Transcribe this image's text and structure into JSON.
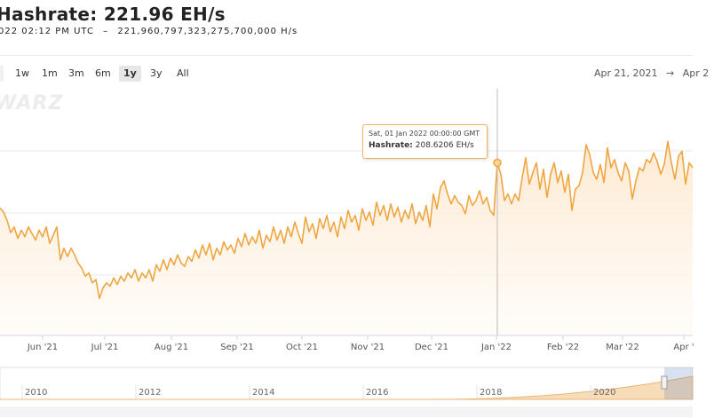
{
  "header": {
    "title": "Hashrate: 221.96 EH/s",
    "timestamp": "022 02:12 PM UTC",
    "separator": "–",
    "exact_value": "221,960,797,323,275,700,000 H/s"
  },
  "range_selector": {
    "buttons": [
      "1w",
      "1m",
      "3m",
      "6m",
      "1y",
      "3y",
      "All"
    ],
    "active": "1y"
  },
  "date_range": {
    "from": "Apr 21, 2021",
    "separator": "→",
    "to": "Apr 2"
  },
  "watermark": "WARZ",
  "tooltip": {
    "date": "Sat, 01 Jan 2022 00:00:00 GMT",
    "label": "Hashrate:",
    "value": "208.6206 EH/s"
  },
  "colors": {
    "line": "#f0a640",
    "area_top": "#fde7cc",
    "area_bottom": "#fffaf4",
    "grid": "#e8e8e8",
    "navigator_fill": "#f7dcb8"
  },
  "chart_data": {
    "type": "line",
    "title": "Hashrate",
    "unit": "EH/s",
    "x_ticks": [
      "Jun '21",
      "Jul '21",
      "Aug '21",
      "Sep '21",
      "Oct '21",
      "Nov '21",
      "Dec '21",
      "Jan '22",
      "Feb '22",
      "Mar '22",
      "Apr '"
    ],
    "grid": true,
    "series": [
      {
        "name": "Hashrate",
        "points": [
          [
            0,
            155
          ],
          [
            4,
            150
          ],
          [
            8,
            140
          ],
          [
            12,
            125
          ],
          [
            16,
            132
          ],
          [
            20,
            118
          ],
          [
            24,
            128
          ],
          [
            28,
            120
          ],
          [
            32,
            132
          ],
          [
            36,
            124
          ],
          [
            40,
            116
          ],
          [
            44,
            128
          ],
          [
            48,
            120
          ],
          [
            52,
            132
          ],
          [
            56,
            112
          ],
          [
            60,
            122
          ],
          [
            64,
            132
          ],
          [
            68,
            92
          ],
          [
            72,
            106
          ],
          [
            76,
            96
          ],
          [
            80,
            106
          ],
          [
            84,
            98
          ],
          [
            88,
            88
          ],
          [
            92,
            82
          ],
          [
            96,
            72
          ],
          [
            100,
            76
          ],
          [
            104,
            64
          ],
          [
            108,
            68
          ],
          [
            112,
            45
          ],
          [
            116,
            58
          ],
          [
            120,
            64
          ],
          [
            124,
            60
          ],
          [
            128,
            70
          ],
          [
            132,
            62
          ],
          [
            136,
            72
          ],
          [
            140,
            66
          ],
          [
            144,
            76
          ],
          [
            148,
            70
          ],
          [
            152,
            80
          ],
          [
            156,
            66
          ],
          [
            160,
            76
          ],
          [
            164,
            70
          ],
          [
            168,
            80
          ],
          [
            172,
            66
          ],
          [
            176,
            86
          ],
          [
            180,
            78
          ],
          [
            184,
            92
          ],
          [
            188,
            80
          ],
          [
            192,
            94
          ],
          [
            196,
            86
          ],
          [
            200,
            98
          ],
          [
            204,
            88
          ],
          [
            208,
            84
          ],
          [
            212,
            96
          ],
          [
            216,
            90
          ],
          [
            220,
            104
          ],
          [
            224,
            94
          ],
          [
            228,
            110
          ],
          [
            232,
            98
          ],
          [
            236,
            112
          ],
          [
            240,
            92
          ],
          [
            244,
            106
          ],
          [
            248,
            98
          ],
          [
            252,
            114
          ],
          [
            256,
            104
          ],
          [
            260,
            110
          ],
          [
            264,
            100
          ],
          [
            268,
            118
          ],
          [
            272,
            108
          ],
          [
            276,
            124
          ],
          [
            280,
            110
          ],
          [
            284,
            120
          ],
          [
            288,
            112
          ],
          [
            292,
            128
          ],
          [
            296,
            106
          ],
          [
            300,
            122
          ],
          [
            304,
            114
          ],
          [
            308,
            132
          ],
          [
            312,
            116
          ],
          [
            316,
            128
          ],
          [
            320,
            112
          ],
          [
            324,
            132
          ],
          [
            328,
            120
          ],
          [
            332,
            138
          ],
          [
            336,
            124
          ],
          [
            340,
            112
          ],
          [
            344,
            144
          ],
          [
            348,
            126
          ],
          [
            352,
            136
          ],
          [
            356,
            118
          ],
          [
            360,
            142
          ],
          [
            364,
            130
          ],
          [
            368,
            146
          ],
          [
            372,
            126
          ],
          [
            376,
            138
          ],
          [
            380,
            120
          ],
          [
            384,
            144
          ],
          [
            388,
            130
          ],
          [
            392,
            152
          ],
          [
            396,
            138
          ],
          [
            400,
            146
          ],
          [
            404,
            128
          ],
          [
            408,
            154
          ],
          [
            412,
            140
          ],
          [
            416,
            150
          ],
          [
            420,
            134
          ],
          [
            424,
            162
          ],
          [
            428,
            146
          ],
          [
            432,
            158
          ],
          [
            436,
            140
          ],
          [
            440,
            160
          ],
          [
            444,
            144
          ],
          [
            448,
            156
          ],
          [
            452,
            138
          ],
          [
            456,
            152
          ],
          [
            460,
            142
          ],
          [
            464,
            160
          ],
          [
            468,
            136
          ],
          [
            472,
            150
          ],
          [
            476,
            140
          ],
          [
            480,
            158
          ],
          [
            484,
            132
          ],
          [
            488,
            172
          ],
          [
            492,
            154
          ],
          [
            496,
            180
          ],
          [
            500,
            188
          ],
          [
            504,
            172
          ],
          [
            508,
            160
          ],
          [
            512,
            170
          ],
          [
            516,
            162
          ],
          [
            520,
            158
          ],
          [
            524,
            148
          ],
          [
            528,
            170
          ],
          [
            532,
            158
          ],
          [
            536,
            164
          ],
          [
            540,
            176
          ],
          [
            544,
            160
          ],
          [
            548,
            168
          ],
          [
            552,
            152
          ],
          [
            556,
            146
          ],
          [
            560,
            210
          ],
          [
            564,
            196
          ],
          [
            568,
            164
          ],
          [
            572,
            172
          ],
          [
            576,
            160
          ],
          [
            580,
            172
          ],
          [
            584,
            164
          ],
          [
            588,
            192
          ],
          [
            592,
            216
          ],
          [
            596,
            184
          ],
          [
            600,
            198
          ],
          [
            604,
            210
          ],
          [
            608,
            178
          ],
          [
            612,
            202
          ],
          [
            616,
            168
          ],
          [
            620,
            196
          ],
          [
            624,
            210
          ],
          [
            628,
            186
          ],
          [
            632,
            200
          ],
          [
            636,
            174
          ],
          [
            640,
            196
          ],
          [
            644,
            152
          ],
          [
            648,
            178
          ],
          [
            652,
            182
          ],
          [
            656,
            198
          ],
          [
            660,
            232
          ],
          [
            664,
            220
          ],
          [
            668,
            198
          ],
          [
            672,
            190
          ],
          [
            676,
            208
          ],
          [
            680,
            186
          ],
          [
            684,
            228
          ],
          [
            688,
            204
          ],
          [
            692,
            214
          ],
          [
            696,
            198
          ],
          [
            700,
            188
          ],
          [
            704,
            210
          ],
          [
            708,
            200
          ],
          [
            712,
            166
          ],
          [
            716,
            188
          ],
          [
            720,
            204
          ],
          [
            724,
            200
          ],
          [
            728,
            214
          ],
          [
            732,
            210
          ],
          [
            736,
            222
          ],
          [
            740,
            212
          ],
          [
            744,
            196
          ],
          [
            748,
            208
          ],
          [
            752,
            236
          ],
          [
            756,
            210
          ],
          [
            760,
            190
          ],
          [
            764,
            218
          ],
          [
            768,
            224
          ],
          [
            772,
            184
          ],
          [
            776,
            210
          ],
          [
            780,
            204
          ]
        ]
      }
    ]
  },
  "navigator": {
    "x_ticks": [
      "2010",
      "2012",
      "2014",
      "2016",
      "2018",
      "2020"
    ]
  }
}
